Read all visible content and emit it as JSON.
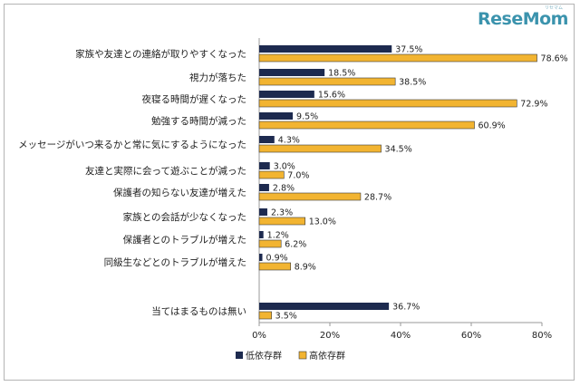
{
  "brand": {
    "logo_text": "ReseMom",
    "logo_kana": "リセマム"
  },
  "colors": {
    "low": "#1d2a4f",
    "high": "#f2b431",
    "axis": "#9a9a9a"
  },
  "chart_data": {
    "type": "bar",
    "orientation": "horizontal",
    "title": "",
    "xlabel": "",
    "ylabel": "",
    "xlim": [
      0,
      80
    ],
    "x_ticks": [
      "0%",
      "20%",
      "40%",
      "60%",
      "80%"
    ],
    "grid": false,
    "legend_position": "bottom",
    "categories": [
      "家族や友達との連絡が取りやすくなった",
      "視力が落ちた",
      "夜寝る時間が遅くなった",
      "勉強する時間が減った",
      "メッセージがいつ来るかと常に気にするようになった",
      "友達と実際に会って遊ぶことが減った",
      "保護者の知らない友達が増えた",
      "家族との会話が少なくなった",
      "保護者とのトラブルが増えた",
      "同級生などとのトラブルが増えた",
      "当てはまるものは無い"
    ],
    "series": [
      {
        "name": "低依存群",
        "values": [
          37.5,
          18.5,
          15.6,
          9.5,
          4.3,
          3.0,
          2.8,
          2.3,
          1.2,
          0.9,
          36.7
        ],
        "labels": [
          "37.5%",
          "18.5%",
          "15.6%",
          "9.5%",
          "4.3%",
          "3.0%",
          "2.8%",
          "2.3%",
          "1.2%",
          "0.9%",
          "36.7%"
        ]
      },
      {
        "name": "高依存群",
        "values": [
          78.6,
          38.5,
          72.9,
          60.9,
          34.5,
          7.0,
          28.7,
          13.0,
          6.2,
          8.9,
          3.5
        ],
        "labels": [
          "78.6%",
          "38.5%",
          "72.9%",
          "60.9%",
          "34.5%",
          "7.0%",
          "28.7%",
          "13.0%",
          "6.2%",
          "8.9%",
          "3.5%"
        ]
      }
    ]
  }
}
